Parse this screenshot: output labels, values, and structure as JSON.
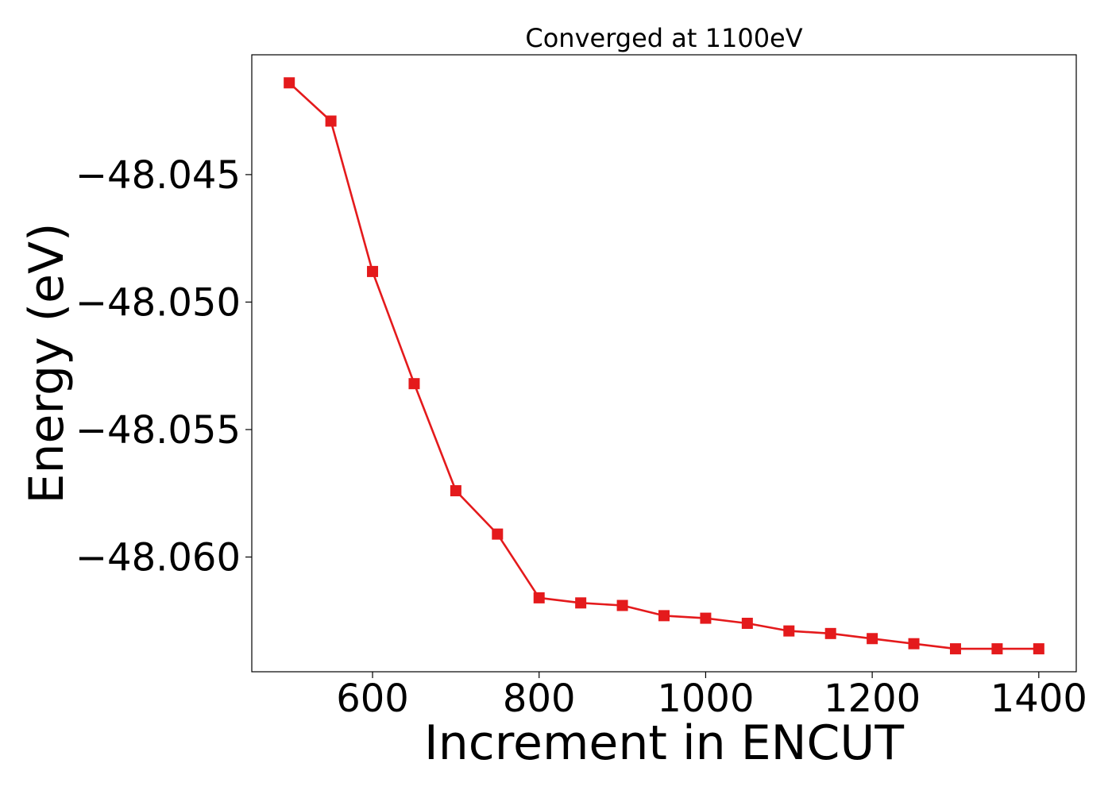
{
  "chart_data": {
    "type": "line",
    "title": "Converged at 1100eV",
    "xlabel": "Increment in ENCUT",
    "ylabel": "Energy (eV)",
    "xlim": [
      455,
      1445
    ],
    "ylim": [
      -48.0645,
      -48.0403
    ],
    "xticks": [
      600,
      800,
      1000,
      1200,
      1400
    ],
    "xtick_labels": [
      "600",
      "800",
      "1000",
      "1200",
      "1400"
    ],
    "yticks": [
      -48.045,
      -48.05,
      -48.055,
      -48.06
    ],
    "ytick_labels": [
      "−48.045",
      "−48.050",
      "−48.055",
      "−48.060"
    ],
    "grid": false,
    "series": [
      {
        "color": "#e41a1c",
        "marker": "square",
        "x": [
          500,
          550,
          600,
          650,
          700,
          750,
          800,
          850,
          900,
          950,
          1000,
          1050,
          1100,
          1150,
          1200,
          1250,
          1300,
          1350,
          1400
        ],
        "y": [
          -48.0414,
          -48.0429,
          -48.0488,
          -48.0532,
          -48.0574,
          -48.0591,
          -48.0616,
          -48.0618,
          -48.0619,
          -48.0623,
          -48.0624,
          -48.0626,
          -48.0629,
          -48.063,
          -48.0632,
          -48.0634,
          -48.0636,
          -48.0636,
          -48.0636
        ]
      }
    ]
  }
}
